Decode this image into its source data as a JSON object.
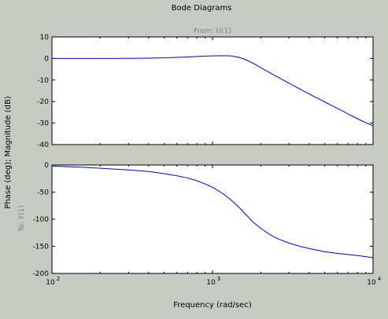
{
  "figure": {
    "title": "Bode Diagrams",
    "from_label": "From: U(1)",
    "to_label": "To: Y(1)",
    "ylabel": "Phase (deg); Magnitude (dB)",
    "xlabel": "Frequency (rad/sec)"
  },
  "colors": {
    "background": "#c8cbc4",
    "axes_bg": "#ffffff",
    "curve": "#0000cc",
    "label_text": "#000000",
    "subtitle_text": "#808080"
  },
  "chart_data": [
    {
      "type": "line",
      "panel": "magnitude",
      "xscale": "log",
      "xlim": [
        100,
        10000
      ],
      "ylim": [
        -40,
        10
      ],
      "yticks": [
        10,
        0,
        -10,
        -20,
        -30,
        -40
      ],
      "xticks": [],
      "grid": false,
      "series": [
        {
          "x": [
            100,
            150,
            200,
            300,
            400,
            500,
            600,
            700,
            800,
            900,
            1000,
            1150,
            1300,
            1450,
            1600,
            1800,
            2000,
            2300,
            2600,
            3000,
            3500,
            4000,
            5000,
            6000,
            7000,
            8000,
            9000,
            10000
          ],
          "y": [
            0.0,
            0.0,
            0.0,
            0.05,
            0.15,
            0.3,
            0.5,
            0.7,
            0.9,
            1.1,
            1.2,
            1.3,
            1.2,
            0.6,
            -0.5,
            -2.3,
            -4.3,
            -6.8,
            -9.0,
            -11.5,
            -14.2,
            -16.5,
            -20.2,
            -23.2,
            -25.8,
            -28.0,
            -29.8,
            -31.3
          ]
        }
      ]
    },
    {
      "type": "line",
      "panel": "phase",
      "xscale": "log",
      "xlim": [
        100,
        10000
      ],
      "ylim": [
        -200,
        0
      ],
      "yticks": [
        0,
        -50,
        -100,
        -150,
        -200
      ],
      "xticks": [
        {
          "value": 100,
          "base": "10",
          "exp": "2"
        },
        {
          "value": 1000,
          "base": "10",
          "exp": "3"
        },
        {
          "value": 10000,
          "base": "10",
          "exp": "4"
        }
      ],
      "grid": false,
      "series": [
        {
          "x": [
            100,
            150,
            200,
            300,
            400,
            500,
            600,
            700,
            800,
            900,
            1000,
            1150,
            1300,
            1450,
            1600,
            1800,
            2000,
            2300,
            2600,
            3000,
            3500,
            4000,
            5000,
            6000,
            7000,
            8000,
            9000,
            10000
          ],
          "y": [
            -2,
            -4,
            -6,
            -9,
            -12,
            -16,
            -20,
            -24,
            -29,
            -35,
            -41,
            -52,
            -64,
            -77,
            -90,
            -106,
            -117,
            -129,
            -137,
            -144,
            -150,
            -154,
            -160,
            -163,
            -165,
            -167,
            -169,
            -171
          ]
        }
      ]
    }
  ]
}
